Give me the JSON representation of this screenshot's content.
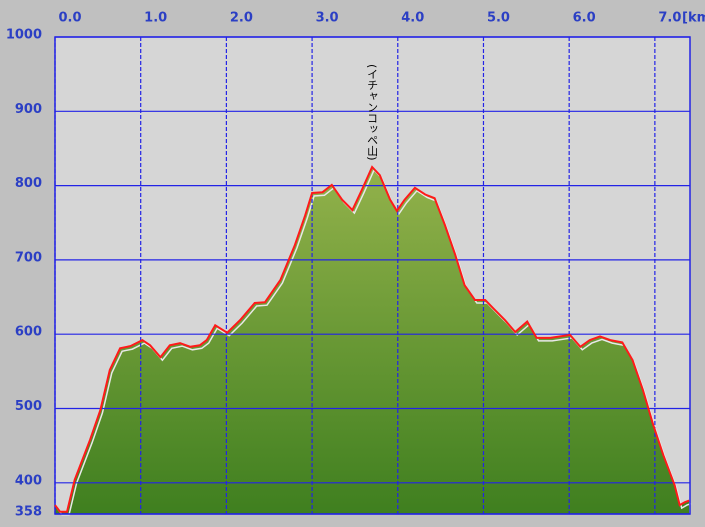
{
  "chart_data": {
    "type": "area",
    "annotation": "(イチャンコッペ山)",
    "x_unit": "[km]",
    "x": [
      0,
      0.06,
      0.14,
      0.23,
      0.41,
      0.53,
      0.64,
      0.76,
      0.88,
      1.02,
      1.11,
      1.23,
      1.34,
      1.46,
      1.58,
      1.69,
      1.77,
      1.87,
      2.01,
      2.16,
      2.33,
      2.45,
      2.63,
      2.8,
      2.92,
      3.0,
      3.12,
      3.23,
      3.35,
      3.47,
      3.58,
      3.7,
      3.79,
      3.91,
      3.99,
      4.08,
      4.2,
      4.32,
      4.43,
      4.55,
      4.67,
      4.78,
      4.9,
      5.02,
      5.13,
      5.25,
      5.37,
      5.51,
      5.62,
      5.78,
      6.01,
      6.13,
      6.24,
      6.36,
      6.48,
      6.62,
      6.74,
      6.86,
      6.98,
      7.1,
      7.23,
      7.29,
      7.35,
      7.4
    ],
    "values": [
      370,
      361,
      361,
      404,
      458,
      498,
      552,
      581,
      584,
      592,
      585,
      569,
      585,
      588,
      583,
      585,
      592,
      612,
      602,
      619,
      642,
      643,
      673,
      720,
      760,
      790,
      791,
      801,
      781,
      767,
      794,
      825,
      814,
      781,
      766,
      781,
      797,
      788,
      783,
      747,
      707,
      666,
      646,
      646,
      633,
      619,
      603,
      617,
      595,
      595,
      599,
      583,
      592,
      597,
      592,
      589,
      565,
      525,
      478,
      437,
      397,
      370,
      374,
      376
    ],
    "line_color": "#ff1a1a",
    "fill_colors": [
      "#93b24b",
      "#3f7f1f"
    ],
    "grid_color": "#2323e6",
    "xlim": [
      0,
      7.41
    ],
    "xticks": [
      {
        "value": 0,
        "label": "0.0"
      },
      {
        "value": 1,
        "label": "1.0"
      },
      {
        "value": 2,
        "label": "2.0"
      },
      {
        "value": 3,
        "label": "3.0"
      },
      {
        "value": 4,
        "label": "4.0"
      },
      {
        "value": 5,
        "label": "5.0"
      },
      {
        "value": 6,
        "label": "6.0"
      },
      {
        "value": 7,
        "label": "7.0"
      }
    ],
    "ylim": [
      358,
      1000
    ],
    "yticks": [
      358,
      400,
      500,
      600,
      700,
      800,
      900,
      1000
    ],
    "grid": true
  }
}
